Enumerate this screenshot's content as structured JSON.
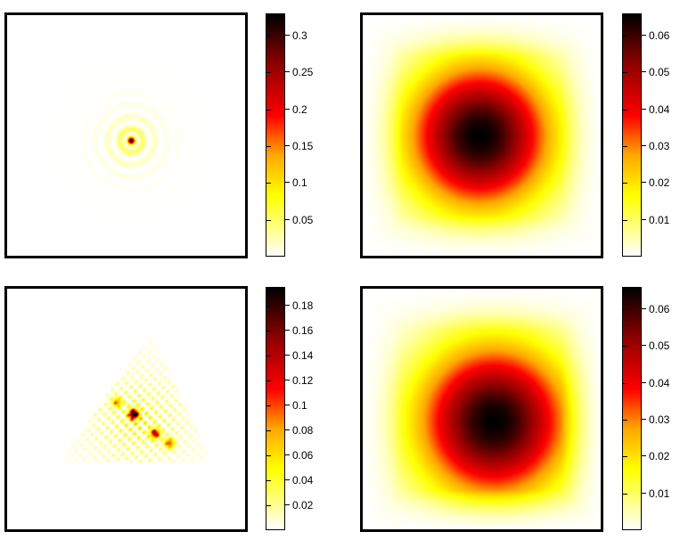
{
  "chart_data": [
    {
      "type": "heatmap",
      "pattern": "concentric-rings-small-center",
      "colormap": "hot-reversed",
      "colorbar_ticks": [
        "0.05",
        "0.1",
        "0.15",
        "0.2",
        "0.25",
        "0.3"
      ],
      "colorbar_range": [
        0,
        0.33
      ]
    },
    {
      "type": "heatmap",
      "pattern": "broad-radial-blob",
      "colormap": "hot-reversed",
      "colorbar_ticks": [
        "0.01",
        "0.02",
        "0.03",
        "0.04",
        "0.05",
        "0.06"
      ],
      "colorbar_range": [
        0,
        0.066
      ]
    },
    {
      "type": "heatmap",
      "pattern": "triangular-interference-blobs",
      "colormap": "hot-reversed",
      "colorbar_ticks": [
        "0.02",
        "0.04",
        "0.06",
        "0.08",
        "0.1",
        "0.12",
        "0.14",
        "0.16",
        "0.18"
      ],
      "colorbar_range": [
        0,
        0.195
      ]
    },
    {
      "type": "heatmap",
      "pattern": "broad-radial-blob-offset",
      "colormap": "hot-reversed",
      "colorbar_ticks": [
        "0.01",
        "0.02",
        "0.03",
        "0.04",
        "0.05",
        "0.06"
      ],
      "colorbar_range": [
        0,
        0.066
      ]
    }
  ]
}
